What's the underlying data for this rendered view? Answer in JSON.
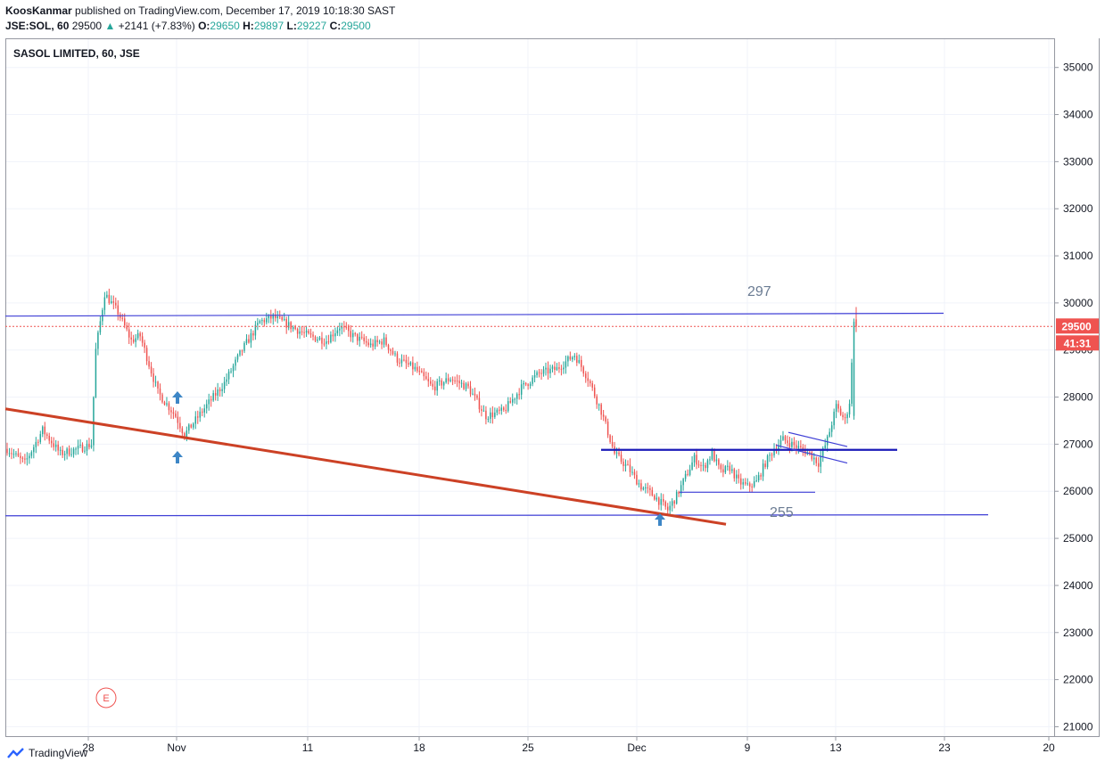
{
  "header": {
    "author": "KoosKanmar",
    "published": "published on TradingView.com, December 17, 2019 10:18:30 SAST",
    "symbol": "JSE:SOL, 60",
    "last": "29500",
    "change": "+2141 (+7.83%)",
    "o_label": "O:",
    "o": "29650",
    "h_label": "H:",
    "h": "29897",
    "l_label": "L:",
    "l": "29227",
    "c_label": "C:",
    "c": "29500"
  },
  "footer": {
    "brand": "TradingView"
  },
  "colors": {
    "up": "#26a69a",
    "down": "#ef5350",
    "hline": "#3f3fd6",
    "trend": "#cc4125",
    "arrow": "#3d86c6",
    "price_label": "#ef5350",
    "annot": "#6b7c93"
  },
  "chart_data": {
    "type": "candlestick",
    "title": "SASOL LIMITED, 60, JSE",
    "ylim": [
      20800,
      35600
    ],
    "yticks": [
      21000,
      22000,
      23000,
      24000,
      25000,
      26000,
      27000,
      28000,
      29000,
      30000,
      31000,
      32000,
      33000,
      34000,
      35000
    ],
    "xticks": [
      "28",
      "Nov",
      "11",
      "18",
      "25",
      "Dec",
      "9",
      "13",
      "23",
      "20"
    ],
    "last_price": "29500",
    "countdown": "41:31",
    "annotations": [
      "297",
      "255"
    ],
    "event_marker": "E",
    "grid": true,
    "anchors": [
      {
        "bar": 0,
        "price": 26900
      },
      {
        "bar": 8,
        "price": 26600
      },
      {
        "bar": 16,
        "price": 27300
      },
      {
        "bar": 24,
        "price": 26800
      },
      {
        "bar": 32,
        "price": 26900
      },
      {
        "bar": 38,
        "price": 27000
      },
      {
        "bar": 40,
        "price": 29000
      },
      {
        "bar": 44,
        "price": 30200
      },
      {
        "bar": 50,
        "price": 29800
      },
      {
        "bar": 56,
        "price": 29200
      },
      {
        "bar": 60,
        "price": 29300
      },
      {
        "bar": 68,
        "price": 28100
      },
      {
        "bar": 76,
        "price": 27600
      },
      {
        "bar": 80,
        "price": 27200
      },
      {
        "bar": 88,
        "price": 27700
      },
      {
        "bar": 98,
        "price": 28300
      },
      {
        "bar": 106,
        "price": 29000
      },
      {
        "bar": 114,
        "price": 29600
      },
      {
        "bar": 120,
        "price": 29700
      },
      {
        "bar": 128,
        "price": 29500
      },
      {
        "bar": 136,
        "price": 29300
      },
      {
        "bar": 144,
        "price": 29200
      },
      {
        "bar": 150,
        "price": 29500
      },
      {
        "bar": 156,
        "price": 29300
      },
      {
        "bar": 164,
        "price": 29100
      },
      {
        "bar": 170,
        "price": 29200
      },
      {
        "bar": 176,
        "price": 28800
      },
      {
        "bar": 184,
        "price": 28600
      },
      {
        "bar": 192,
        "price": 28200
      },
      {
        "bar": 200,
        "price": 28400
      },
      {
        "bar": 208,
        "price": 28200
      },
      {
        "bar": 216,
        "price": 27600
      },
      {
        "bar": 224,
        "price": 27700
      },
      {
        "bar": 232,
        "price": 28200
      },
      {
        "bar": 240,
        "price": 28500
      },
      {
        "bar": 248,
        "price": 28600
      },
      {
        "bar": 256,
        "price": 28900
      },
      {
        "bar": 262,
        "price": 28400
      },
      {
        "bar": 268,
        "price": 27700
      },
      {
        "bar": 274,
        "price": 26800
      },
      {
        "bar": 280,
        "price": 26500
      },
      {
        "bar": 286,
        "price": 26100
      },
      {
        "bar": 292,
        "price": 25900
      },
      {
        "bar": 298,
        "price": 25600
      },
      {
        "bar": 302,
        "price": 25900
      },
      {
        "bar": 306,
        "price": 26300
      },
      {
        "bar": 310,
        "price": 26700
      },
      {
        "bar": 314,
        "price": 26500
      },
      {
        "bar": 318,
        "price": 26800
      },
      {
        "bar": 322,
        "price": 26400
      },
      {
        "bar": 326,
        "price": 26500
      },
      {
        "bar": 330,
        "price": 26200
      },
      {
        "bar": 334,
        "price": 26100
      },
      {
        "bar": 338,
        "price": 26200
      },
      {
        "bar": 342,
        "price": 26600
      },
      {
        "bar": 346,
        "price": 26900
      },
      {
        "bar": 350,
        "price": 27100
      },
      {
        "bar": 354,
        "price": 27000
      },
      {
        "bar": 358,
        "price": 26900
      },
      {
        "bar": 362,
        "price": 26800
      },
      {
        "bar": 366,
        "price": 26600
      },
      {
        "bar": 370,
        "price": 27100
      },
      {
        "bar": 374,
        "price": 27800
      },
      {
        "bar": 378,
        "price": 27500
      },
      {
        "bar": 380,
        "price": 27900
      },
      {
        "bar": 382,
        "price": 29500
      },
      {
        "bar": 383,
        "price": 29500
      }
    ]
  }
}
